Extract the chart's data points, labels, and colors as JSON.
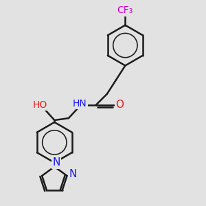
{
  "bg_color": "#e2e2e2",
  "bond_color": "#1a1a1a",
  "bond_width": 1.8,
  "figsize": [
    3.0,
    3.0
  ],
  "dpi": 100,
  "colors": {
    "N": "#1a1aee",
    "O": "#ee1a1a",
    "F": "#cc00cc",
    "bond": "#1a1a1a"
  },
  "xlim": [
    0,
    10
  ],
  "ylim": [
    0,
    10
  ]
}
